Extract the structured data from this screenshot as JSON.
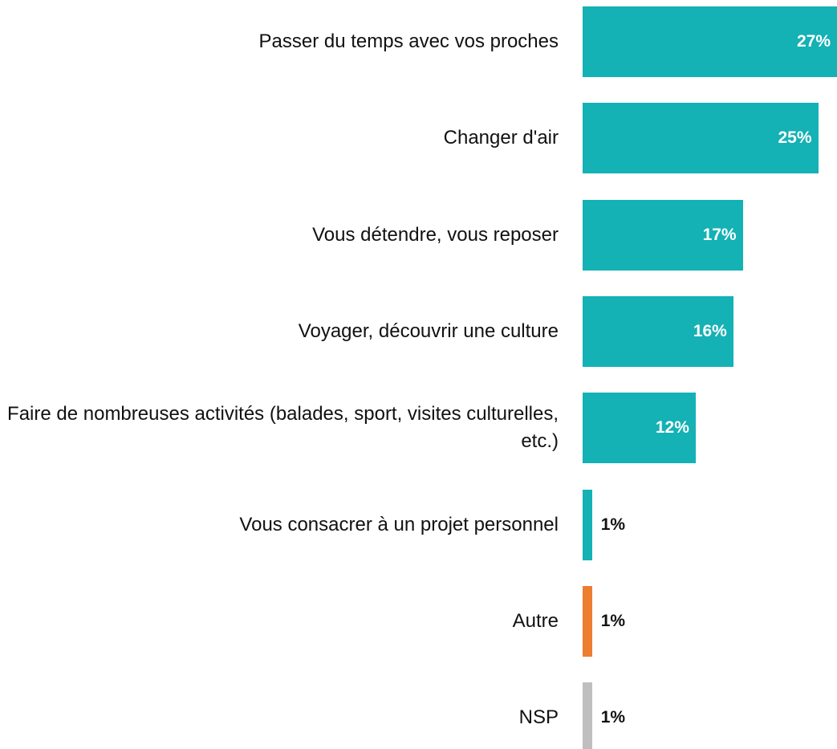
{
  "chart_data": {
    "type": "bar",
    "orientation": "horizontal",
    "categories": [
      "Passer du temps avec vos proches",
      "Changer d'air",
      "Vous détendre, vous reposer",
      "Voyager, découvrir une culture",
      "Faire de nombreuses activités (balades, sport, visites culturelles, etc.)",
      "Vous consacrer à un projet personnel",
      "Autre",
      "NSP"
    ],
    "values": [
      27,
      25,
      17,
      16,
      12,
      1,
      1,
      1
    ],
    "value_labels": [
      "27%",
      "25%",
      "17%",
      "16%",
      "12%",
      "1%",
      "1%",
      "1%"
    ],
    "colors": [
      "#14b1b5",
      "#14b1b5",
      "#14b1b5",
      "#14b1b5",
      "#14b1b5",
      "#14b1b5",
      "#ed7d31",
      "#bfbfbf"
    ]
  }
}
